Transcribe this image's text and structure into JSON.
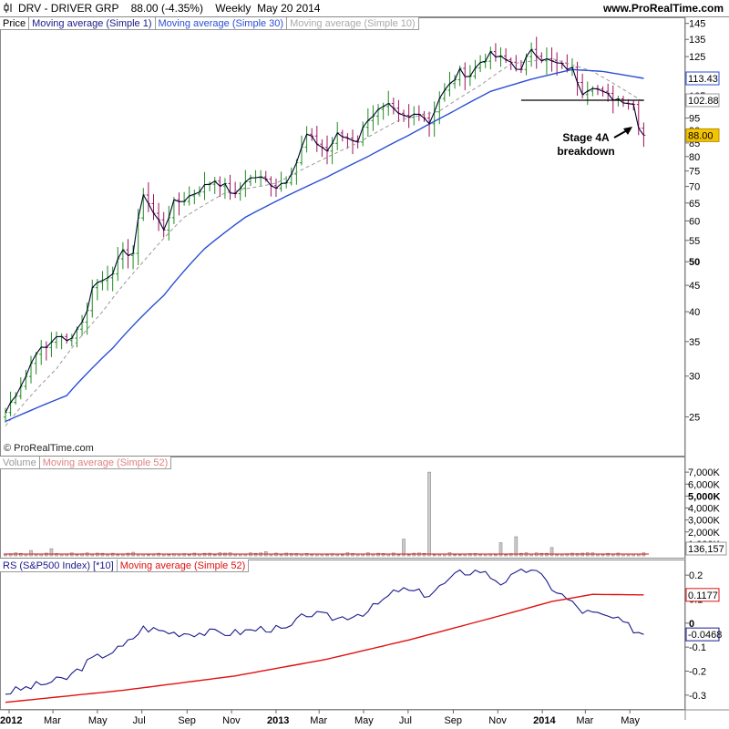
{
  "header": {
    "title": "DRV - DRIVER GRP    88.00 (-4.35%)    Weekly  May 20 2014",
    "url": "www.ProRealTime.com"
  },
  "price_legend": [
    "Price",
    "Moving average (Simple 1)",
    "Moving average (Simple 30)",
    "Moving average (Simple 10)"
  ],
  "volume_legend": [
    "Volume",
    "Moving average (Simple 52)"
  ],
  "rs_legend": [
    "RS (S&P500 Index) [*10]",
    "Moving average (Simple 52)"
  ],
  "copyright": "© ProRealTime.com",
  "annotation": {
    "line1": "Stage 4A",
    "line2": "breakdown"
  },
  "colors": {
    "up_bar": "#1e8c1e",
    "down_bar": "#a0105a",
    "close_line": "#000033",
    "ma30": "#2a4fd6",
    "ma10": "#999999",
    "rs_line": "#1a1a8c",
    "rs_ma": "#e01010",
    "volume_bar": "#888888",
    "volume_ma": "#e01010",
    "price_label_bg": "#f5c400"
  },
  "chart_data": [
    {
      "panel": "price",
      "type": "ohlc",
      "scale": "log",
      "ylim": [
        23,
        146
      ],
      "xlim": [
        "2011-12-27",
        "2014-05-27"
      ],
      "yticks": [
        25,
        30,
        35,
        40,
        45,
        50,
        55,
        60,
        65,
        70,
        75,
        80,
        85,
        90,
        95,
        105,
        115,
        125,
        135,
        145
      ],
      "yticklabels": [
        "25",
        "30",
        "35",
        "40",
        "45",
        "50",
        "55",
        "60",
        "65",
        "70",
        "75",
        "80",
        "85",
        "90",
        "95",
        "105",
        "115",
        "125",
        "135",
        "145"
      ],
      "xticks": [
        "2012-01-01",
        "2012-03-01",
        "2012-05-01",
        "2012-07-01",
        "2012-09-01",
        "2012-11-01",
        "2013-01-01",
        "2013-03-01",
        "2013-05-01",
        "2013-07-01",
        "2013-09-01",
        "2013-11-01",
        "2014-01-01",
        "2014-03-01",
        "2014-05-01"
      ],
      "xticklabels": [
        "2012",
        "Mar",
        "May",
        "Jul",
        "Sep",
        "Nov",
        "2013",
        "Mar",
        "May",
        "Jul",
        "Sep",
        "Nov",
        "2014",
        "Mar",
        "May"
      ],
      "bold_xticklabels": [
        "2012",
        "2013",
        "2014"
      ],
      "labels": {
        "ma30_last": "113.43",
        "resistance": "102.88",
        "last_close": "88.00"
      },
      "support_line": {
        "value": 102.88,
        "from": "2013-12-03",
        "to": "2014-05-13"
      },
      "close_weekly_anchors": [
        [
          "2011-12-27",
          25.5
        ],
        [
          "2012-01-24",
          30
        ],
        [
          "2012-02-07",
          33.5
        ],
        [
          "2012-02-21",
          34
        ],
        [
          "2012-03-06",
          36
        ],
        [
          "2012-03-20",
          35
        ],
        [
          "2012-04-03",
          37
        ],
        [
          "2012-04-17",
          40
        ],
        [
          "2012-04-24",
          45
        ],
        [
          "2012-05-08",
          46
        ],
        [
          "2012-05-22",
          48
        ],
        [
          "2012-06-05",
          52
        ],
        [
          "2012-06-19",
          52
        ],
        [
          "2012-07-03",
          68
        ],
        [
          "2012-07-17",
          62
        ],
        [
          "2012-07-31",
          58
        ],
        [
          "2012-08-14",
          65
        ],
        [
          "2012-08-28",
          66
        ],
        [
          "2012-09-11",
          68
        ],
        [
          "2012-09-25",
          70
        ],
        [
          "2012-10-09",
          72
        ],
        [
          "2012-10-23",
          70
        ],
        [
          "2012-11-06",
          67
        ],
        [
          "2012-11-20",
          72
        ],
        [
          "2012-12-04",
          73
        ],
        [
          "2012-12-18",
          72
        ],
        [
          "2013-01-01",
          70
        ],
        [
          "2013-01-15",
          72
        ],
        [
          "2013-01-29",
          78
        ],
        [
          "2013-02-12",
          88
        ],
        [
          "2013-02-26",
          85
        ],
        [
          "2013-03-12",
          82
        ],
        [
          "2013-03-26",
          88
        ],
        [
          "2013-04-09",
          87
        ],
        [
          "2013-04-23",
          86
        ],
        [
          "2013-05-07",
          95
        ],
        [
          "2013-05-21",
          98
        ],
        [
          "2013-06-04",
          100
        ],
        [
          "2013-06-18",
          96
        ],
        [
          "2013-07-02",
          95
        ],
        [
          "2013-07-16",
          98
        ],
        [
          "2013-07-30",
          93
        ],
        [
          "2013-08-13",
          104
        ],
        [
          "2013-08-27",
          110
        ],
        [
          "2013-09-10",
          117
        ],
        [
          "2013-09-24",
          115
        ],
        [
          "2013-10-08",
          122
        ],
        [
          "2013-10-22",
          126
        ],
        [
          "2013-11-05",
          124
        ],
        [
          "2013-11-19",
          122
        ],
        [
          "2013-12-03",
          117
        ],
        [
          "2013-12-17",
          130
        ],
        [
          "2013-12-31",
          124
        ],
        [
          "2014-01-14",
          122
        ],
        [
          "2014-01-28",
          120
        ],
        [
          "2014-02-11",
          118
        ],
        [
          "2014-02-25",
          107
        ],
        [
          "2014-03-11",
          110
        ],
        [
          "2014-03-25",
          106
        ],
        [
          "2014-04-08",
          104
        ],
        [
          "2014-04-22",
          103
        ],
        [
          "2014-05-06",
          101
        ],
        [
          "2014-05-13",
          92
        ],
        [
          "2014-05-20",
          88
        ]
      ],
      "ma30_anchors": [
        [
          "2011-12-27",
          24.5
        ],
        [
          "2012-03-20",
          27.5
        ],
        [
          "2012-05-22",
          34
        ],
        [
          "2012-07-31",
          43
        ],
        [
          "2012-09-25",
          53
        ],
        [
          "2012-11-20",
          61
        ],
        [
          "2013-01-15",
          67
        ],
        [
          "2013-03-12",
          73
        ],
        [
          "2013-05-07",
          80
        ],
        [
          "2013-07-02",
          88
        ],
        [
          "2013-08-27",
          97
        ],
        [
          "2013-10-22",
          107
        ],
        [
          "2013-12-17",
          113
        ],
        [
          "2014-02-11",
          118
        ],
        [
          "2014-03-25",
          117
        ],
        [
          "2014-05-20",
          113.43
        ]
      ],
      "ma10_anchors": [
        [
          "2011-12-27",
          24
        ],
        [
          "2012-03-06",
          31
        ],
        [
          "2012-05-08",
          40
        ],
        [
          "2012-07-03",
          50
        ],
        [
          "2012-08-28",
          61
        ],
        [
          "2012-10-23",
          68
        ],
        [
          "2013-01-01",
          71
        ],
        [
          "2013-02-26",
          78
        ],
        [
          "2013-04-23",
          85
        ],
        [
          "2013-06-18",
          94
        ],
        [
          "2013-08-13",
          98
        ],
        [
          "2013-10-08",
          110
        ],
        [
          "2013-11-19",
          121
        ],
        [
          "2014-01-14",
          124
        ],
        [
          "2014-03-11",
          117
        ],
        [
          "2014-05-20",
          102
        ]
      ]
    },
    {
      "panel": "volume",
      "type": "bar",
      "ylim": [
        0,
        8000
      ],
      "yticks": [
        1000,
        2000,
        3000,
        4000,
        5000,
        6000,
        7000
      ],
      "yticklabels": [
        "1,000K",
        "2,000K",
        "3,000K",
        "4,000K",
        "5,000K",
        "6,000K",
        "7,000K"
      ],
      "bold_yticklabel": "5,000K",
      "last_label": "136,157",
      "base_volume_k": 180,
      "spikes_k": [
        [
          "2012-01-31",
          450
        ],
        [
          "2012-02-28",
          600
        ],
        [
          "2012-04-17",
          250
        ],
        [
          "2012-06-19",
          300
        ],
        [
          "2012-12-18",
          350
        ],
        [
          "2013-06-25",
          1400
        ],
        [
          "2013-07-30",
          7000
        ],
        [
          "2013-11-05",
          1100
        ],
        [
          "2013-11-26",
          1600
        ],
        [
          "2014-01-14",
          700
        ]
      ],
      "ma52_k": 150
    },
    {
      "panel": "rs",
      "type": "line",
      "ylim": [
        -0.35,
        0.25
      ],
      "yticks": [
        -0.3,
        -0.2,
        -0.1,
        0,
        0.1,
        0.2
      ],
      "yticklabels": [
        "-0.3",
        "-0.2",
        "-0.1",
        "0",
        "0.1",
        "0.2"
      ],
      "labels": {
        "ma_last": "0.1177",
        "rs_last": "-0.0468"
      },
      "rs_anchors": [
        [
          "2011-12-27",
          -0.29
        ],
        [
          "2012-02-07",
          -0.26
        ],
        [
          "2012-03-20",
          -0.23
        ],
        [
          "2012-04-24",
          -0.15
        ],
        [
          "2012-06-05",
          -0.1
        ],
        [
          "2012-07-03",
          -0.02
        ],
        [
          "2012-08-14",
          -0.04
        ],
        [
          "2012-09-25",
          -0.04
        ],
        [
          "2012-11-06",
          -0.04
        ],
        [
          "2012-12-18",
          -0.02
        ],
        [
          "2013-01-15",
          -0.03
        ],
        [
          "2013-02-12",
          0.04
        ],
        [
          "2013-03-26",
          0.02
        ],
        [
          "2013-05-07",
          0.05
        ],
        [
          "2013-06-18",
          0.14
        ],
        [
          "2013-07-30",
          0.12
        ],
        [
          "2013-09-10",
          0.21
        ],
        [
          "2013-10-08",
          0.22
        ],
        [
          "2013-11-05",
          0.17
        ],
        [
          "2013-12-17",
          0.23
        ],
        [
          "2014-01-14",
          0.15
        ],
        [
          "2014-02-25",
          0.05
        ],
        [
          "2014-04-08",
          0.02
        ],
        [
          "2014-05-20",
          -0.0468
        ]
      ],
      "ma_anchors": [
        [
          "2011-12-27",
          -0.33
        ],
        [
          "2012-06-05",
          -0.28
        ],
        [
          "2012-11-06",
          -0.22
        ],
        [
          "2013-03-12",
          -0.15
        ],
        [
          "2013-07-02",
          -0.07
        ],
        [
          "2013-10-22",
          0.02
        ],
        [
          "2014-01-14",
          0.09
        ],
        [
          "2014-03-11",
          0.12
        ],
        [
          "2014-05-20",
          0.1177
        ]
      ]
    }
  ]
}
